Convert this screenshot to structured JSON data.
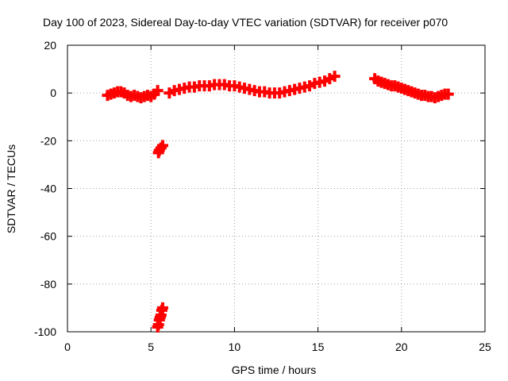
{
  "chart_data": {
    "type": "scatter",
    "title": "Day 100 of 2023, Sidereal Day-to-day VTEC variation (SDTVAR) for receiver p070",
    "xlabel": "GPS time / hours",
    "ylabel": "SDTVAR / TECUs",
    "xlim": [
      0,
      25
    ],
    "ylim": [
      -100,
      20
    ],
    "xticks": [
      0,
      5,
      10,
      15,
      20,
      25
    ],
    "yticks": [
      -100,
      -80,
      -60,
      -40,
      -20,
      0,
      20
    ],
    "grid": true,
    "marker": "plus",
    "color": "#ff0000",
    "series": [
      {
        "name": "SDTVAR",
        "x": [
          2.4,
          2.6,
          2.8,
          3.0,
          3.2,
          3.4,
          3.6,
          3.8,
          4.0,
          4.2,
          4.4,
          4.6,
          4.8,
          5.0,
          5.2,
          5.4,
          5.45,
          5.5,
          5.6,
          5.7,
          5.4,
          5.45,
          5.5,
          5.55,
          5.6,
          5.65,
          5.7,
          6.1,
          6.4,
          6.7,
          7.0,
          7.3,
          7.6,
          7.9,
          8.2,
          8.5,
          8.8,
          9.1,
          9.4,
          9.7,
          10.0,
          10.3,
          10.6,
          10.9,
          11.2,
          11.5,
          11.8,
          12.1,
          12.4,
          12.7,
          13.0,
          13.3,
          13.6,
          13.9,
          14.2,
          14.5,
          14.8,
          15.1,
          15.4,
          15.7,
          16.0,
          18.4,
          18.6,
          18.8,
          19.0,
          19.2,
          19.4,
          19.6,
          19.8,
          20.0,
          20.2,
          20.4,
          20.6,
          20.8,
          21.0,
          21.2,
          21.4,
          21.6,
          21.8,
          22.0,
          22.2,
          22.4,
          22.6,
          22.8
        ],
        "y": [
          -1,
          -0.5,
          0,
          0.5,
          0.5,
          0,
          -1,
          -1.5,
          -1,
          -1.5,
          -2,
          -1.5,
          -1,
          -1.5,
          -0.5,
          1,
          -25,
          -24,
          -23,
          -22,
          -98,
          -97,
          -95,
          -94,
          -93,
          -91,
          -90,
          0,
          1,
          1.5,
          2,
          2.5,
          2.5,
          3,
          3,
          3,
          3.5,
          3.5,
          3.5,
          3,
          3,
          2.5,
          2,
          1.5,
          1,
          0.5,
          0.5,
          0,
          0,
          0,
          0.5,
          1,
          1.5,
          2,
          2.5,
          3,
          4,
          4.5,
          5,
          6,
          7,
          6,
          5,
          4.5,
          4,
          3.5,
          3,
          3,
          2.5,
          2,
          1.5,
          1,
          0.5,
          0,
          -0.5,
          -1,
          -1,
          -1.5,
          -1.5,
          -2,
          -1.5,
          -1,
          -0.5,
          -0.5
        ]
      }
    ]
  }
}
